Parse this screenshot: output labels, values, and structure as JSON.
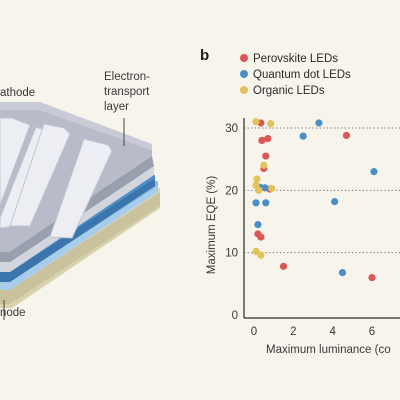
{
  "panel_b": {
    "letter": "b"
  },
  "diagram": {
    "labels": {
      "cathode": "athode",
      "etl_line1": "Electron-",
      "etl_line2": "transport",
      "etl_line3": "layer",
      "anode": "node"
    },
    "colors": {
      "top_plate": "#b8bcc9",
      "top_plate_side": "#9a9fae",
      "electrode": "#eceef3",
      "blue_layer": "#4e8fc9",
      "blue_layer_side": "#3a76ad",
      "light_blue_layer": "#8fbde0",
      "base_layer": "#dcd6b4",
      "base_layer_side": "#c9c29c"
    }
  },
  "chart_data": {
    "type": "scatter",
    "title": "",
    "xlabel": "Maximum luminance (co",
    "ylabel": "Maximum EQE (%)",
    "xlim": [
      -0.5,
      7.5
    ],
    "ylim": [
      0,
      33
    ],
    "yticks": [
      0,
      10,
      20,
      30
    ],
    "xticks": [
      0,
      2,
      4,
      6
    ],
    "grid": "dotted horizontal lines at 10, 20, 30",
    "legend_position": "top",
    "series": [
      {
        "name": "Perovskite LEDs",
        "color": "#dc5656",
        "points": [
          [
            0.35,
            30.8
          ],
          [
            4.7,
            28.8
          ],
          [
            0.4,
            28.0
          ],
          [
            0.7,
            28.3
          ],
          [
            0.6,
            25.5
          ],
          [
            0.5,
            23.5
          ],
          [
            0.8,
            20.2
          ],
          [
            0.2,
            13.0
          ],
          [
            0.35,
            12.5
          ],
          [
            1.5,
            7.8
          ],
          [
            6.0,
            6.0
          ]
        ]
      },
      {
        "name": "Quantum dot LEDs",
        "color": "#4a8fc7",
        "points": [
          [
            3.3,
            30.8
          ],
          [
            2.5,
            28.7
          ],
          [
            6.1,
            23.0
          ],
          [
            0.3,
            20.5
          ],
          [
            0.55,
            20.4
          ],
          [
            4.1,
            18.2
          ],
          [
            0.1,
            18.0
          ],
          [
            0.6,
            18.0
          ],
          [
            0.2,
            14.5
          ],
          [
            4.5,
            6.8
          ]
        ]
      },
      {
        "name": "Organic LEDs",
        "color": "#e3c25a",
        "points": [
          [
            0.1,
            31.0
          ],
          [
            0.85,
            30.7
          ],
          [
            0.5,
            24.0
          ],
          [
            0.15,
            21.8
          ],
          [
            0.1,
            20.8
          ],
          [
            0.25,
            20.0
          ],
          [
            0.9,
            20.3
          ],
          [
            0.1,
            10.2
          ],
          [
            0.35,
            9.6
          ]
        ]
      }
    ]
  }
}
